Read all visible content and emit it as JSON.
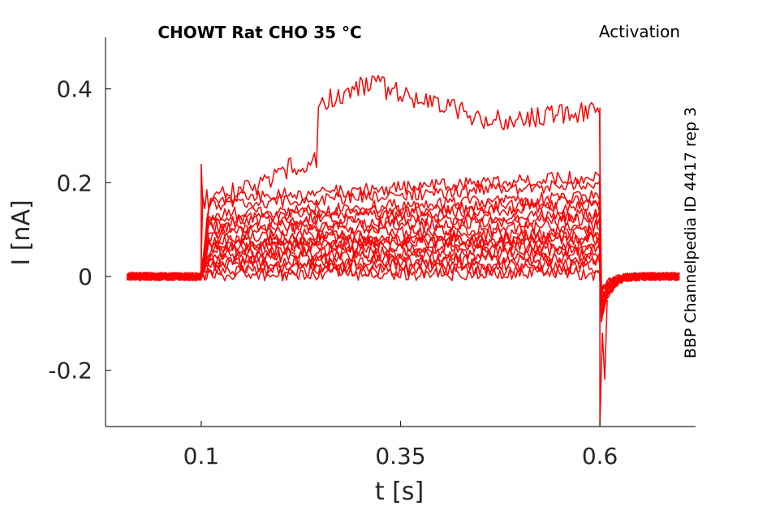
{
  "chart_data": {
    "type": "line",
    "title": "CHOWT  Rat  CHO  35 °C",
    "annotation_top_right": "Activation",
    "annotation_side": "BBP Channelpedia ID 4417 rep 3",
    "xlabel": "t [s]",
    "ylabel": "I [nA]",
    "xlim": [
      -0.02,
      0.72
    ],
    "ylim": [
      -0.32,
      0.51
    ],
    "xticks": [
      0.1,
      0.35,
      0.6
    ],
    "xtick_labels": [
      "0.1",
      "0.35",
      "0.6"
    ],
    "yticks": [
      -0.2,
      0,
      0.2,
      0.4
    ],
    "ytick_labels": [
      "-0.2",
      "0",
      "0.2",
      "0.4"
    ],
    "grid": false,
    "legend": "none",
    "series_color": "#ff0000",
    "pulse_window": [
      0.1,
      0.6
    ],
    "steady_state_levels": [
      0.36,
      0.2,
      0.185,
      0.16,
      0.15,
      0.14,
      0.125,
      0.115,
      0.1,
      0.09,
      0.08,
      0.075,
      0.065,
      0.055,
      0.045,
      0.035,
      0.025,
      0.015,
      0.005
    ],
    "peak_values": {
      "max": 0.44,
      "min": -0.32
    }
  }
}
